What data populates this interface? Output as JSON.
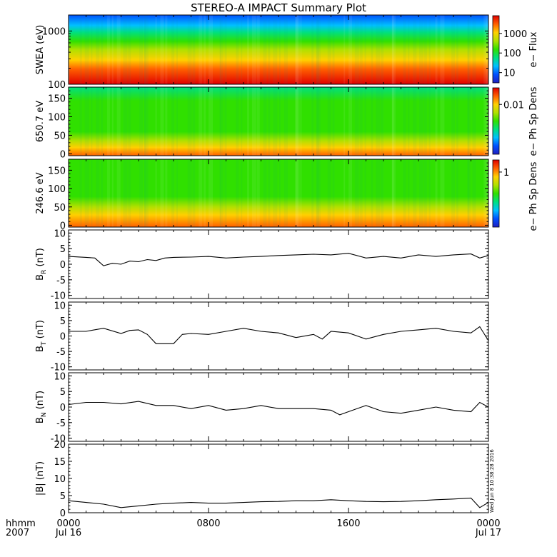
{
  "title": "STEREO-A IMPACT Summary Plot",
  "time_axis": {
    "header_labels": [
      "hhmm",
      "2007"
    ],
    "ticks": [
      {
        "time": "0000",
        "date": "Jul 16",
        "hour": 0
      },
      {
        "time": "0800",
        "date": "",
        "hour": 8
      },
      {
        "time": "1600",
        "date": "",
        "hour": 16
      },
      {
        "time": "0000",
        "date": "Jul 17",
        "hour": 24
      }
    ],
    "range_hours": [
      0,
      24
    ]
  },
  "timestamp": "Wed Jun 8 10:38:28 2016",
  "colors": {
    "colormap": [
      "#2020c0",
      "#0050ff",
      "#00c0ff",
      "#00e080",
      "#30e000",
      "#b0e000",
      "#ffd000",
      "#ff6000",
      "#e00000"
    ],
    "line": "#000000"
  },
  "chart_data": [
    {
      "type": "heatmap",
      "panel": "swea",
      "ylabel": "SWEA (eV)",
      "yscale": "log",
      "ylim": [
        100,
        2000
      ],
      "yticks": [
        "100",
        "1000"
      ],
      "colorbar_label": "e− Flux",
      "colorbar_ticks": [
        "10",
        "100",
        "1000"
      ],
      "colorbar_scale": "log",
      "colorbar_range": [
        3,
        8000
      ]
    },
    {
      "type": "heatmap",
      "panel": "pad-650",
      "ylabel": "650.7 eV",
      "ylim": [
        -5,
        180
      ],
      "yticks": [
        "0",
        "50",
        "100",
        "150"
      ],
      "colorbar_label": "e− Ph Sp Dens",
      "colorbar_ticks": [
        "0.01"
      ],
      "colorbar_scale": "log"
    },
    {
      "type": "heatmap",
      "panel": "pad-246",
      "ylabel": "246.6 eV",
      "ylim": [
        -5,
        180
      ],
      "yticks": [
        "0",
        "50",
        "100",
        "150"
      ],
      "colorbar_label": "e− Ph Sp Dens",
      "colorbar_ticks": [
        "1"
      ],
      "colorbar_scale": "log"
    },
    {
      "type": "line",
      "panel": "br",
      "ylabel_main": "B",
      "ylabel_sub": "R",
      "ylabel_unit": "(nT)",
      "ylim": [
        -11,
        11
      ],
      "yticks": [
        "-10",
        "-5",
        "0",
        "5",
        "10"
      ],
      "x": [
        0,
        1,
        1.5,
        2,
        2.5,
        3,
        3.5,
        4,
        4.5,
        5,
        5.5,
        6,
        7,
        8,
        9,
        10,
        11,
        12,
        13,
        14,
        15,
        16,
        17,
        18,
        19,
        20,
        21,
        22,
        23,
        23.5,
        24
      ],
      "values": [
        2.5,
        2.2,
        2.0,
        -0.5,
        0.3,
        0.0,
        1.0,
        0.8,
        1.5,
        1.2,
        2.0,
        2.2,
        2.3,
        2.5,
        2.0,
        2.3,
        2.5,
        2.8,
        3.0,
        3.2,
        3.0,
        3.5,
        2.0,
        2.5,
        2.0,
        3.0,
        2.5,
        3.0,
        3.3,
        2.0,
        2.8
      ]
    },
    {
      "type": "line",
      "panel": "bt",
      "ylabel_main": "B",
      "ylabel_sub": "T",
      "ylabel_unit": "(nT)",
      "ylim": [
        -11,
        11
      ],
      "yticks": [
        "-10",
        "-5",
        "0",
        "5",
        "10"
      ],
      "x": [
        0,
        1,
        2,
        3,
        3.5,
        4,
        4.5,
        5,
        6,
        6.5,
        7,
        8,
        9,
        10,
        11,
        12,
        13,
        14,
        14.5,
        15,
        16,
        17,
        18,
        19,
        20,
        21,
        22,
        23,
        23.5,
        24
      ],
      "values": [
        1.5,
        1.5,
        2.5,
        0.8,
        1.8,
        2.0,
        0.5,
        -2.5,
        -2.5,
        0.5,
        0.8,
        0.5,
        1.5,
        2.5,
        1.5,
        1.0,
        -0.5,
        0.5,
        -1.0,
        1.5,
        1.0,
        -1.0,
        0.5,
        1.5,
        2.0,
        2.5,
        1.5,
        1.0,
        3.0,
        -1.5
      ]
    },
    {
      "type": "line",
      "panel": "bn",
      "ylabel_main": "B",
      "ylabel_sub": "N",
      "ylabel_unit": "(nT)",
      "ylim": [
        -11,
        11
      ],
      "yticks": [
        "-10",
        "-5",
        "0",
        "5",
        "10"
      ],
      "x": [
        0,
        1,
        2,
        3,
        4,
        5,
        6,
        7,
        8,
        9,
        10,
        11,
        12,
        13,
        14,
        15,
        15.5,
        16,
        17,
        18,
        19,
        20,
        21,
        22,
        23,
        23.5,
        24
      ],
      "values": [
        0.8,
        1.5,
        1.5,
        1.0,
        1.8,
        0.5,
        0.5,
        -0.5,
        0.5,
        -1.0,
        -0.5,
        0.5,
        -0.5,
        -0.5,
        -0.5,
        -1.0,
        -2.5,
        -1.5,
        0.5,
        -1.5,
        -2.0,
        -1.0,
        0.0,
        -1.0,
        -1.5,
        1.5,
        0.0
      ]
    },
    {
      "type": "line",
      "panel": "bmag",
      "ylabel": "|B| (nT)",
      "ylim": [
        0,
        20
      ],
      "yticks": [
        "0",
        "5",
        "10",
        "15",
        "20"
      ],
      "x": [
        0,
        1,
        2,
        3,
        4,
        5,
        6,
        7,
        8,
        9,
        10,
        11,
        12,
        13,
        14,
        15,
        16,
        17,
        18,
        19,
        20,
        21,
        22,
        23,
        23.5,
        24
      ],
      "values": [
        3.5,
        3.0,
        2.5,
        1.5,
        2.0,
        2.5,
        2.8,
        3.0,
        2.8,
        2.8,
        3.0,
        3.2,
        3.3,
        3.5,
        3.5,
        3.8,
        3.5,
        3.3,
        3.2,
        3.3,
        3.5,
        3.8,
        4.0,
        4.3,
        1.5,
        3.0
      ]
    }
  ]
}
